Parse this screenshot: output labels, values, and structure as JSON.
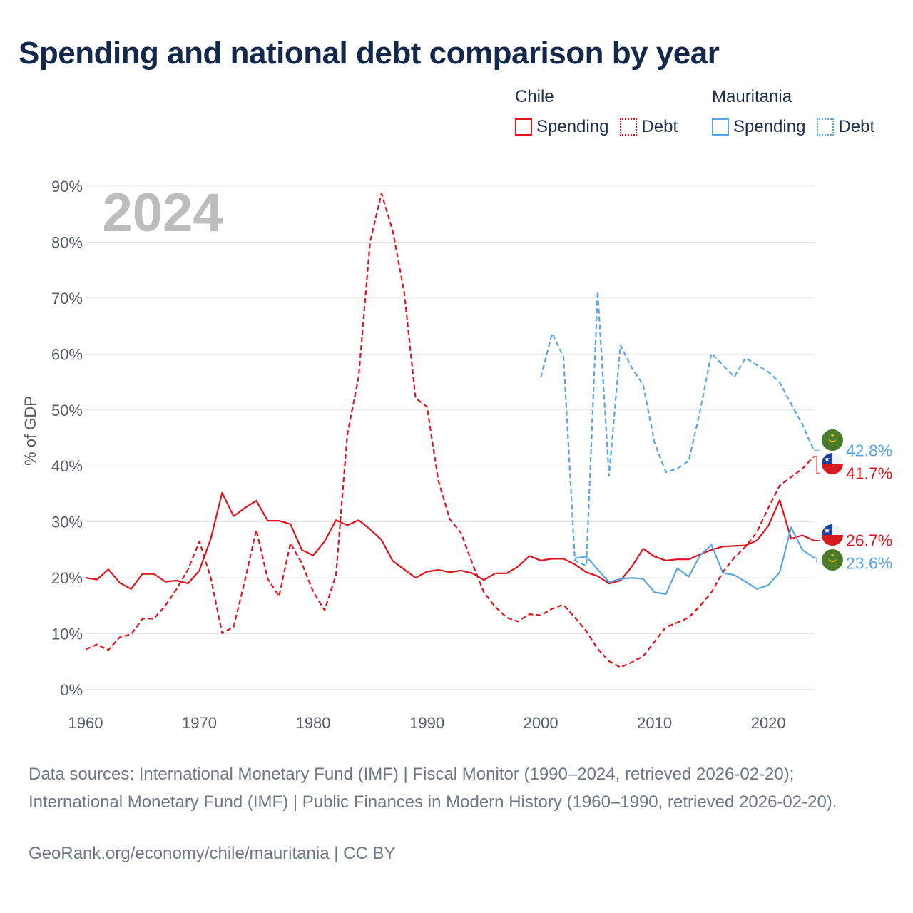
{
  "title": "Spending and national debt comparison by year",
  "legend": {
    "groups": [
      {
        "country": "Chile",
        "color": "#e0141e",
        "items": [
          {
            "label": "Spending",
            "style": "solid"
          },
          {
            "label": "Debt",
            "style": "dotted"
          }
        ]
      },
      {
        "country": "Mauritania",
        "color": "#5aa5e6",
        "items": [
          {
            "label": "Spending",
            "style": "solid"
          },
          {
            "label": "Debt",
            "style": "dotted"
          }
        ]
      }
    ]
  },
  "chart_data": {
    "type": "line",
    "year_label": "2024",
    "ylabel": "% of GDP",
    "xlabel": "",
    "xlim": [
      1960,
      2024
    ],
    "ylim": [
      0,
      90
    ],
    "x_ticks": [
      1960,
      1970,
      1980,
      1990,
      2000,
      2010,
      2020
    ],
    "y_ticks": [
      0,
      10,
      20,
      30,
      40,
      50,
      60,
      70,
      80,
      90
    ],
    "y_tick_labels": [
      "0%",
      "10%",
      "20%",
      "30%",
      "40%",
      "50%",
      "60%",
      "70%",
      "80%",
      "90%"
    ],
    "grid": true,
    "series": [
      {
        "name": "Chile Spending",
        "country": "Chile",
        "color": "#e0141e",
        "dashed": false,
        "x": [
          1960,
          1961,
          1962,
          1963,
          1964,
          1965,
          1966,
          1967,
          1968,
          1969,
          1970,
          1971,
          1972,
          1973,
          1974,
          1975,
          1976,
          1977,
          1978,
          1979,
          1980,
          1981,
          1982,
          1983,
          1984,
          1985,
          1986,
          1987,
          1988,
          1989,
          1990,
          1991,
          1992,
          1993,
          1994,
          1995,
          1996,
          1997,
          1998,
          1999,
          2000,
          2001,
          2002,
          2003,
          2004,
          2005,
          2006,
          2007,
          2008,
          2009,
          2010,
          2011,
          2012,
          2013,
          2014,
          2015,
          2016,
          2017,
          2018,
          2019,
          2020,
          2021,
          2022,
          2023,
          2024
        ],
        "values": [
          20.0,
          19.7,
          21.5,
          19.1,
          18.0,
          20.7,
          20.7,
          19.3,
          19.5,
          19.0,
          21.3,
          27.0,
          35.2,
          31.0,
          32.5,
          33.8,
          30.2,
          30.2,
          29.6,
          25.0,
          24.0,
          26.5,
          30.3,
          29.4,
          30.3,
          28.7,
          26.8,
          23.0,
          21.5,
          20.0,
          21.1,
          21.4,
          21.0,
          21.3,
          20.8,
          19.6,
          20.8,
          20.8,
          22.0,
          23.9,
          23.1,
          23.4,
          23.4,
          22.4,
          21.0,
          20.3,
          19.0,
          19.5,
          22.0,
          25.2,
          23.8,
          23.1,
          23.3,
          23.3,
          24.2,
          25.0,
          25.6,
          25.7,
          25.8,
          26.7,
          29.3,
          33.9,
          27.0,
          27.6,
          26.7
        ],
        "end_label": "26.7%"
      },
      {
        "name": "Chile Debt",
        "country": "Chile",
        "color": "#e0141e",
        "dashed": true,
        "x": [
          1960,
          1961,
          1962,
          1963,
          1964,
          1965,
          1966,
          1967,
          1968,
          1969,
          1970,
          1971,
          1972,
          1973,
          1974,
          1975,
          1976,
          1977,
          1978,
          1979,
          1980,
          1981,
          1982,
          1983,
          1984,
          1985,
          1986,
          1987,
          1988,
          1989,
          1990,
          1991,
          1992,
          1993,
          1994,
          1995,
          1996,
          1997,
          1998,
          1999,
          2000,
          2001,
          2002,
          2003,
          2004,
          2005,
          2006,
          2007,
          2008,
          2009,
          2010,
          2011,
          2012,
          2013,
          2014,
          2015,
          2016,
          2017,
          2018,
          2019,
          2020,
          2021,
          2022,
          2023,
          2024
        ],
        "values": [
          7.2,
          8.1,
          7.1,
          9.4,
          9.9,
          12.7,
          12.7,
          15.0,
          18.0,
          21.5,
          26.5,
          20.0,
          10.1,
          11.2,
          19.5,
          28.6,
          19.8,
          16.7,
          26.2,
          22.6,
          17.5,
          14.2,
          20.5,
          45.6,
          56.0,
          80.0,
          88.7,
          82.0,
          71.0,
          52.1,
          50.6,
          37.4,
          30.5,
          28.0,
          22.5,
          17.4,
          14.8,
          12.9,
          12.2,
          13.5,
          13.3,
          14.5,
          15.2,
          12.9,
          10.5,
          7.3,
          5.1,
          4.0,
          4.9,
          6.0,
          8.6,
          11.2,
          12.0,
          12.9,
          15.0,
          17.4,
          21.0,
          23.6,
          25.6,
          28.2,
          32.5,
          36.5,
          38.0,
          39.5,
          41.7
        ],
        "end_label": "41.7%"
      },
      {
        "name": "Mauritania Spending",
        "country": "Mauritania",
        "color": "#5aa5e6",
        "dashed": false,
        "x": [
          2003,
          2004,
          2005,
          2006,
          2007,
          2008,
          2009,
          2010,
          2011,
          2012,
          2013,
          2014,
          2015,
          2016,
          2017,
          2018,
          2019,
          2020,
          2021,
          2022,
          2023,
          2024
        ],
        "values": [
          23.5,
          23.8,
          21.5,
          19.2,
          19.8,
          20.0,
          19.8,
          17.4,
          17.1,
          21.7,
          20.2,
          24.0,
          25.9,
          20.9,
          20.5,
          19.3,
          18.0,
          18.7,
          21.0,
          29.0,
          25.0,
          23.6
        ],
        "end_label": "23.6%"
      },
      {
        "name": "Mauritania Debt",
        "country": "Mauritania",
        "color": "#5aa5e6",
        "dashed": true,
        "x": [
          2000,
          2001,
          2002,
          2003,
          2004,
          2005,
          2006,
          2007,
          2008,
          2009,
          2010,
          2011,
          2012,
          2013,
          2014,
          2015,
          2016,
          2017,
          2018,
          2019,
          2020,
          2021,
          2022,
          2023,
          2024
        ],
        "values": [
          55.8,
          63.7,
          59.5,
          23.1,
          22.1,
          71.2,
          38.2,
          61.6,
          57.5,
          54.5,
          44.1,
          38.9,
          39.5,
          40.9,
          49.8,
          60.1,
          58.0,
          55.9,
          59.3,
          58.0,
          56.8,
          54.9,
          51.1,
          47.4,
          42.8
        ],
        "end_label": "42.8%"
      }
    ]
  },
  "sources": "Data sources: International Monetary Fund (IMF) | Fiscal Monitor (1990–2024, retrieved 2026-02-20); International Monetary Fund (IMF) | Public Finances in Modern History (1960–1990, retrieved 2026-02-20).",
  "credit": "GeoRank.org/economy/chile/mauritania | CC BY"
}
